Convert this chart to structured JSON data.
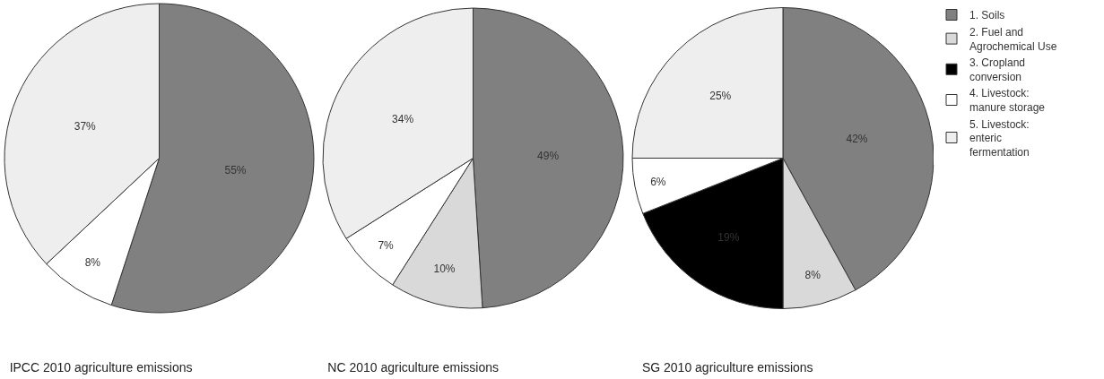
{
  "chart_data": [
    {
      "type": "pie",
      "title": "IPCC 2010 agriculture emissions",
      "categories": [
        null,
        null,
        null
      ],
      "values": [
        55,
        8,
        37
      ],
      "value_labels": [
        "55%",
        "8%",
        "37%"
      ],
      "colors": [
        "#808080",
        "#ffffff",
        "#eeeeee"
      ],
      "legend": false
    },
    {
      "type": "pie",
      "title": "NC 2010 agriculture emissions",
      "categories": [
        null,
        null,
        null,
        null
      ],
      "values": [
        49,
        10,
        7,
        34
      ],
      "value_labels": [
        "49%",
        "10%",
        "7%",
        "34%"
      ],
      "colors": [
        "#808080",
        "#d9d9d9",
        "#ffffff",
        "#eeeeee"
      ],
      "legend": false
    },
    {
      "type": "pie",
      "title": "SG 2010 agriculture emissions",
      "categories": [
        "1. Soils",
        "2. Fuel and Agrochemical Use",
        "3. Cropland conversion",
        "4. Livestock: manure storage",
        "5. Livestock: enteric fermentation"
      ],
      "values": [
        42,
        8,
        19,
        6,
        25
      ],
      "value_labels": [
        "42%",
        "8%",
        "19%",
        "6%",
        "25%"
      ],
      "colors": [
        "#808080",
        "#d9d9d9",
        "#000000",
        "#ffffff",
        "#eeeeee"
      ],
      "legend": "right"
    }
  ]
}
